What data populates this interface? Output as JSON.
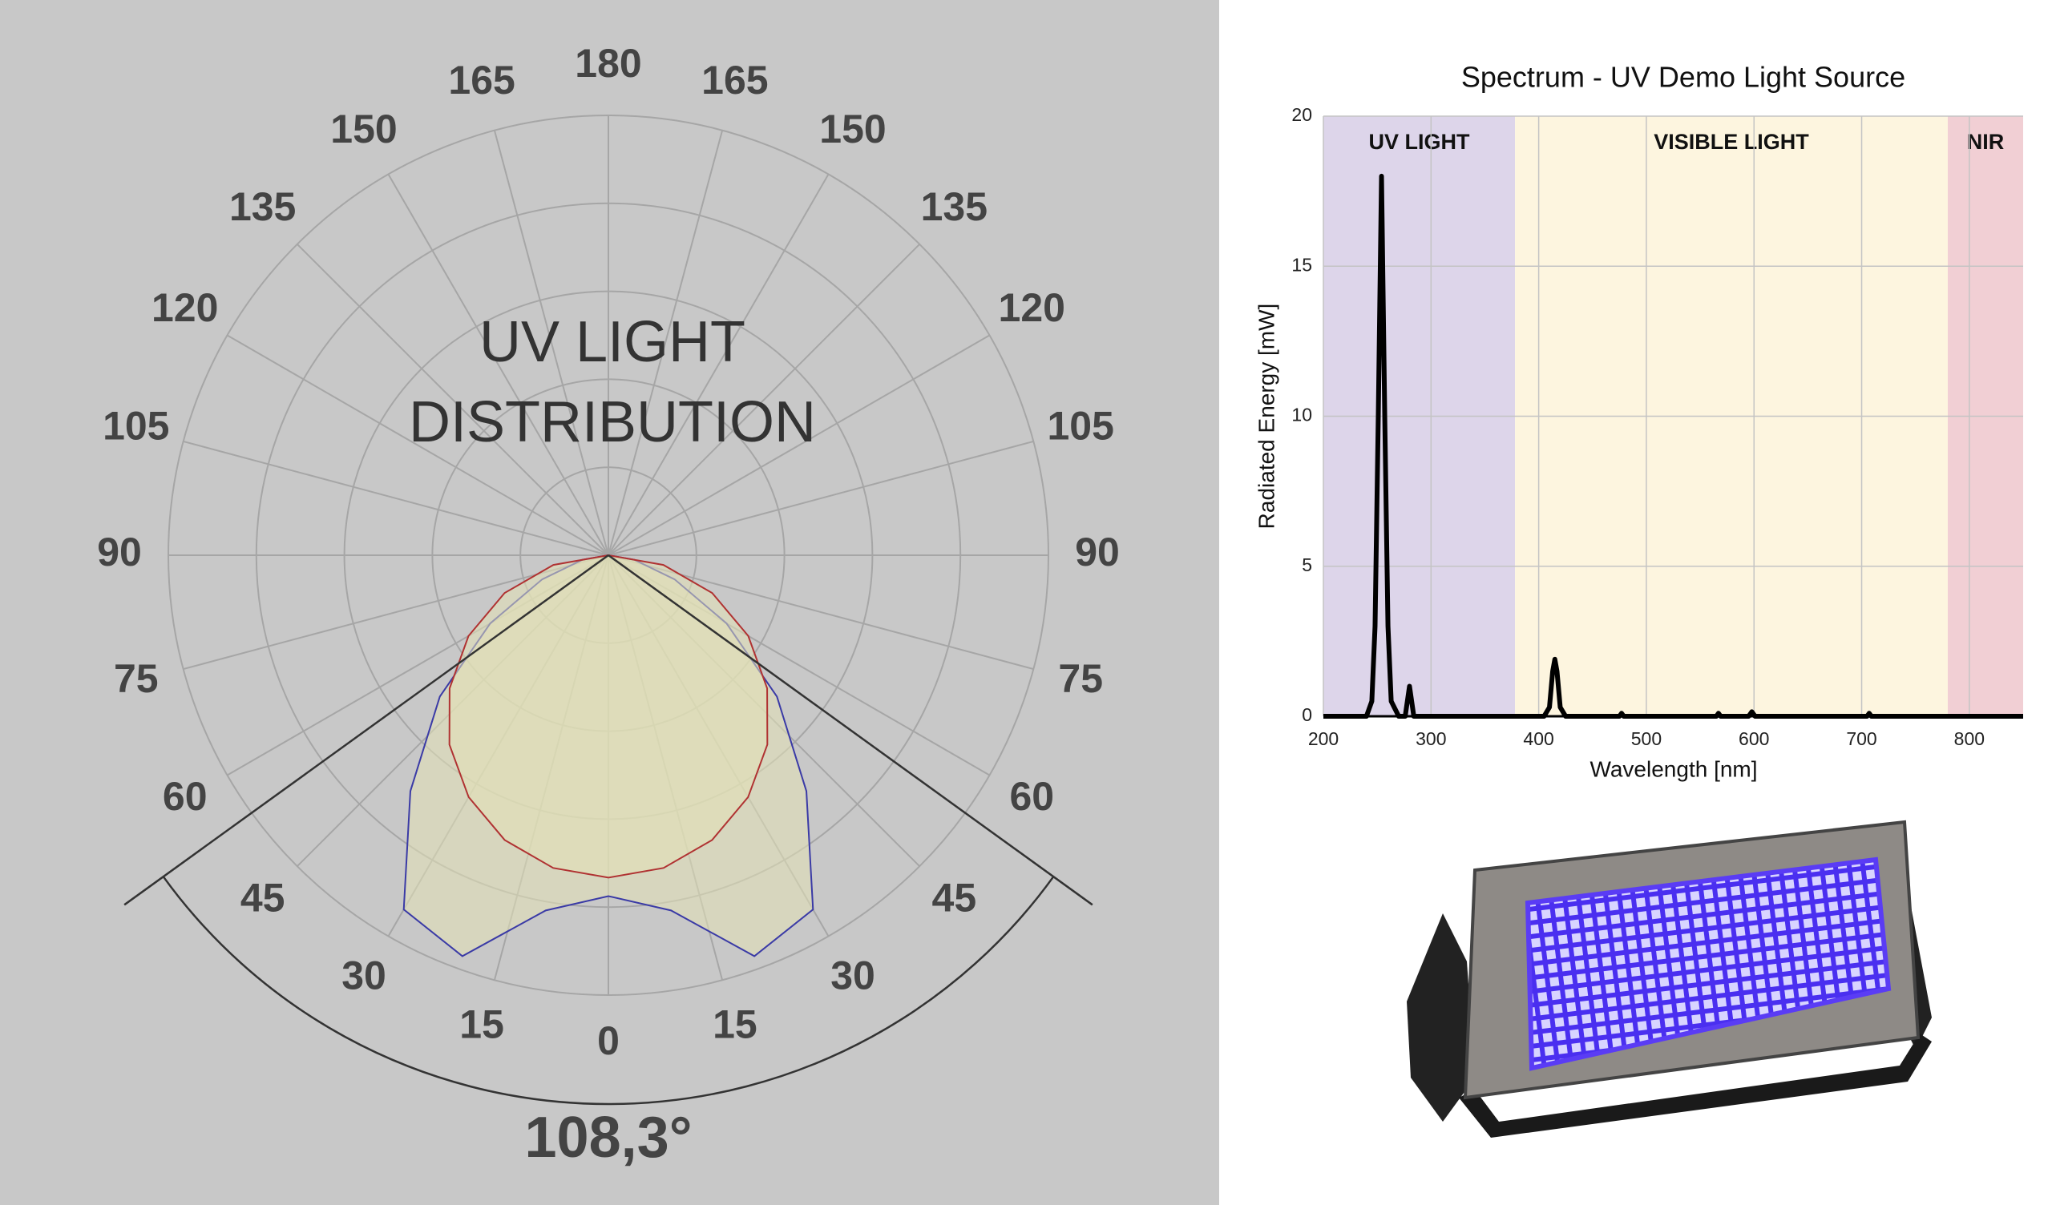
{
  "chart_data": [
    {
      "type": "polar",
      "title_lines": [
        "UV LIGHT",
        "DISTRIBUTION"
      ],
      "theta_ticks": [
        0,
        15,
        30,
        45,
        60,
        75,
        90,
        105,
        120,
        135,
        150,
        165,
        180
      ],
      "rlim": [
        0,
        1
      ],
      "rgrid": [
        0.2,
        0.4,
        0.6,
        0.8,
        1
      ],
      "angles": [
        -90,
        -80,
        -70,
        -60,
        -50,
        -40,
        -30,
        -20,
        -10,
        0,
        10,
        20,
        30,
        40,
        50,
        60,
        70,
        80,
        90
      ],
      "series": [
        {
          "color": "#3a3aa6",
          "values": [
            0,
            0.06,
            0.16,
            0.31,
            0.5,
            0.7,
            0.93,
            0.97,
            0.82,
            0.775,
            0.82,
            0.97,
            0.93,
            0.7,
            0.5,
            0.31,
            0.16,
            0.06,
            0
          ]
        },
        {
          "color": "#b03232",
          "values": [
            0,
            0.127,
            0.251,
            0.367,
            0.471,
            0.562,
            0.635,
            0.689,
            0.722,
            0.733,
            0.722,
            0.689,
            0.635,
            0.562,
            0.471,
            0.367,
            0.251,
            0.127,
            0
          ]
        }
      ],
      "fill": "#e4e2b6",
      "beam_angle": 108.3,
      "beam_angle_label": "108,3°"
    },
    {
      "type": "line",
      "title": "Spectrum - UV Demo Light Source",
      "x_label": "Wavelength [nm]",
      "y_label": "Radiated Energy [mW]",
      "xlim": [
        200,
        850
      ],
      "ylim": [
        0,
        20
      ],
      "xticks": [
        200,
        300,
        400,
        500,
        600,
        700,
        800
      ],
      "yticks": [
        0,
        5,
        10,
        15,
        20
      ],
      "grid": true,
      "color": "#000000",
      "regions": [
        {
          "label": "UV LIGHT",
          "from": 200,
          "to": 378,
          "color": "#ddd5ea"
        },
        {
          "label": "VISIBLE LIGHT",
          "from": 378,
          "to": 780,
          "color": "#fdf5df"
        },
        {
          "label": "NIR",
          "from": 780,
          "to": 850,
          "color": "#f1cfd4"
        }
      ],
      "x": [
        200,
        240,
        245,
        248,
        251,
        254,
        257,
        260,
        263,
        270,
        276,
        280,
        284,
        405,
        410,
        413,
        415,
        417,
        420,
        425,
        475,
        477,
        479,
        565,
        567,
        569,
        595,
        598,
        601,
        705,
        707,
        709,
        850
      ],
      "values": [
        0,
        0,
        0.5,
        3,
        10,
        18,
        10,
        3,
        0.5,
        0,
        0,
        1,
        0,
        0,
        0.3,
        1.5,
        1.9,
        1.5,
        0.3,
        0,
        0,
        0.1,
        0,
        0,
        0.1,
        0,
        0,
        0.15,
        0,
        0,
        0.1,
        0,
        0
      ]
    }
  ]
}
